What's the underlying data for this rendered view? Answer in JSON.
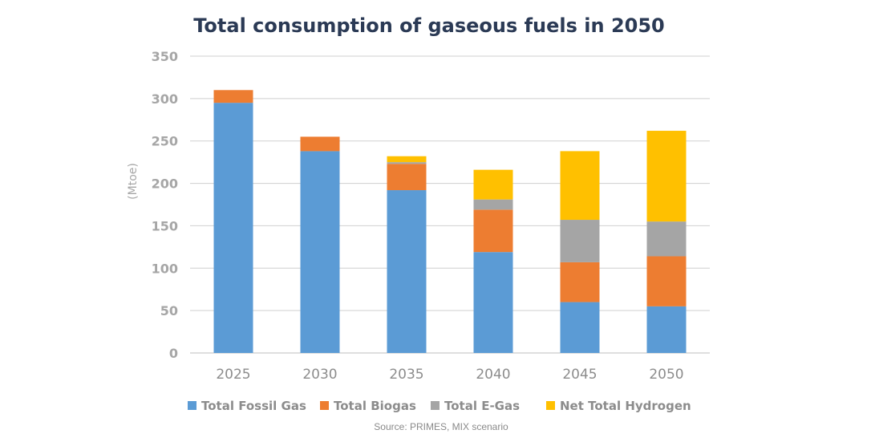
{
  "chart_data": {
    "type": "bar",
    "stacked": true,
    "title": "Total consumption of gaseous fuels in 2050",
    "ylabel": "(Mtoe)",
    "xlabel": "",
    "ylim": [
      0,
      350
    ],
    "yticks": [
      0,
      50,
      100,
      150,
      200,
      250,
      300,
      350
    ],
    "grid": true,
    "legend_position": "bottom",
    "categories": [
      "2025",
      "2030",
      "2035",
      "2040",
      "2045",
      "2050"
    ],
    "series": [
      {
        "name": "Total Fossil Gas",
        "color": "#5b9bd5",
        "values": [
          295,
          238,
          192,
          119,
          60,
          55
        ]
      },
      {
        "name": "Total Biogas",
        "color": "#ed7d31",
        "values": [
          15,
          17,
          31,
          50,
          47,
          59
        ]
      },
      {
        "name": "Total E-Gas",
        "color": "#a5a5a5",
        "values": [
          0,
          0,
          2,
          12,
          50,
          41
        ]
      },
      {
        "name": "Net Total Hydrogen",
        "color": "#ffc000",
        "values": [
          0,
          0,
          7,
          35,
          81,
          107
        ]
      }
    ],
    "source": "Source: PRIMES, MIX scenario"
  }
}
